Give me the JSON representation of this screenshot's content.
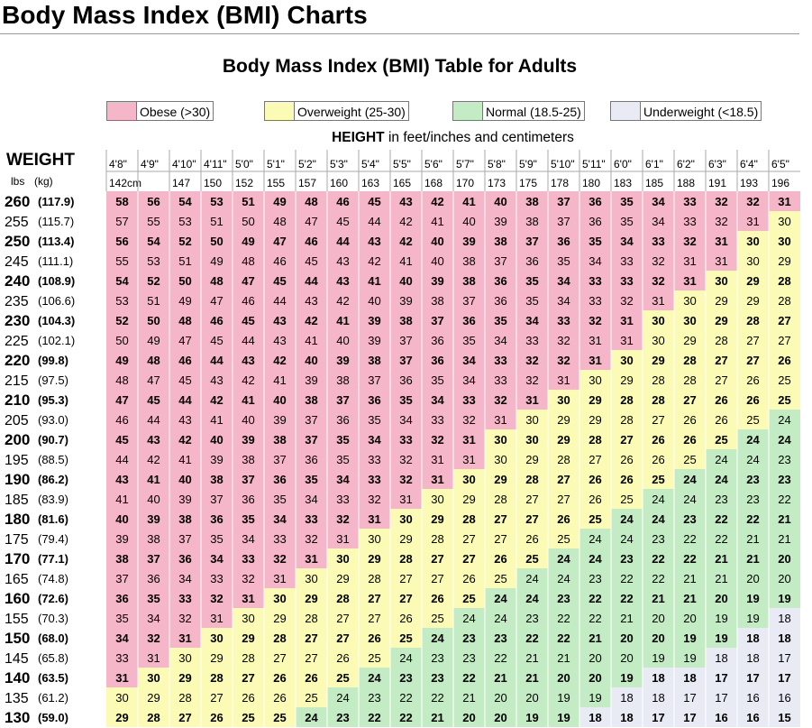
{
  "page": {
    "title": "Body Mass Index (BMI) Charts"
  },
  "table": {
    "title": "Body Mass Index (BMI) Table for Adults",
    "legend": [
      {
        "label": "Obese (>30)",
        "color": "#f4b6c8"
      },
      {
        "label": "Overweight (25-30)",
        "color": "#fbfbb6"
      },
      {
        "label": "Normal (18.5-25)",
        "color": "#c4ecc4"
      },
      {
        "label": "Underweight (<18.5)",
        "color": "#e8ebf4"
      }
    ],
    "height_caption_bold": "HEIGHT",
    "height_caption_rest": " in feet/inches and centimeters",
    "weight_label": "WEIGHT",
    "lbs_label": "lbs",
    "kg_label": "(kg)",
    "heights_ft": [
      "4'8\"",
      "4'9\"",
      "4'10\"",
      "4'11\"",
      "5'0\"",
      "5'1\"",
      "5'2\"",
      "5'3\"",
      "5'4\"",
      "5'5\"",
      "5'6\"",
      "5'7\"",
      "5'8\"",
      "5'9\"",
      "5'10\"",
      "5'11\"",
      "6'0\"",
      "6'1\"",
      "6'2\"",
      "6'3\"",
      "6'4\"",
      "6'5\""
    ],
    "heights_cm": [
      "142cm",
      "",
      "147",
      "150",
      "152",
      "155",
      "157",
      "160",
      "163",
      "165",
      "168",
      "170",
      "173",
      "175",
      "178",
      "180",
      "183",
      "185",
      "188",
      "191",
      "193",
      "196"
    ],
    "rows": [
      {
        "lbs": "260",
        "kg": "(117.9)",
        "bold": true,
        "bmi": [
          58,
          56,
          54,
          53,
          51,
          49,
          48,
          46,
          45,
          43,
          42,
          41,
          40,
          38,
          37,
          36,
          35,
          34,
          33,
          32,
          32,
          31
        ]
      },
      {
        "lbs": "255",
        "kg": "(115.7)",
        "bold": false,
        "bmi": [
          57,
          55,
          53,
          51,
          50,
          48,
          47,
          45,
          44,
          42,
          41,
          40,
          39,
          38,
          37,
          36,
          35,
          34,
          33,
          32,
          31,
          30
        ]
      },
      {
        "lbs": "250",
        "kg": "(113.4)",
        "bold": true,
        "bmi": [
          56,
          54,
          52,
          50,
          49,
          47,
          46,
          44,
          43,
          42,
          40,
          39,
          38,
          37,
          36,
          35,
          34,
          33,
          32,
          31,
          30,
          30
        ]
      },
      {
        "lbs": "245",
        "kg": "(111.1)",
        "bold": false,
        "bmi": [
          55,
          53,
          51,
          49,
          48,
          46,
          45,
          43,
          42,
          41,
          40,
          38,
          37,
          36,
          35,
          34,
          33,
          32,
          31,
          31,
          30,
          29
        ]
      },
      {
        "lbs": "240",
        "kg": "(108.9)",
        "bold": true,
        "bmi": [
          54,
          52,
          50,
          48,
          47,
          45,
          44,
          43,
          41,
          40,
          39,
          38,
          36,
          35,
          34,
          33,
          33,
          32,
          31,
          30,
          29,
          28
        ]
      },
      {
        "lbs": "235",
        "kg": "(106.6)",
        "bold": false,
        "bmi": [
          53,
          51,
          49,
          47,
          46,
          44,
          43,
          42,
          40,
          39,
          38,
          37,
          36,
          35,
          34,
          33,
          32,
          31,
          30,
          29,
          29,
          28
        ]
      },
      {
        "lbs": "230",
        "kg": "(104.3)",
        "bold": true,
        "bmi": [
          52,
          50,
          48,
          46,
          45,
          43,
          42,
          41,
          39,
          38,
          37,
          36,
          35,
          34,
          33,
          32,
          31,
          30,
          30,
          29,
          28,
          27
        ]
      },
      {
        "lbs": "225",
        "kg": "(102.1)",
        "bold": false,
        "bmi": [
          50,
          49,
          47,
          45,
          44,
          43,
          41,
          40,
          39,
          37,
          36,
          35,
          34,
          33,
          32,
          31,
          31,
          30,
          29,
          28,
          27,
          27
        ]
      },
      {
        "lbs": "220",
        "kg": "(99.8)",
        "bold": true,
        "bmi": [
          49,
          48,
          46,
          44,
          43,
          42,
          40,
          39,
          38,
          37,
          36,
          34,
          33,
          32,
          32,
          31,
          30,
          29,
          28,
          27,
          27,
          26
        ]
      },
      {
        "lbs": "215",
        "kg": "(97.5)",
        "bold": false,
        "bmi": [
          48,
          47,
          45,
          43,
          42,
          41,
          39,
          38,
          37,
          36,
          35,
          34,
          33,
          32,
          31,
          30,
          29,
          28,
          28,
          27,
          26,
          25
        ]
      },
      {
        "lbs": "210",
        "kg": "(95.3)",
        "bold": true,
        "bmi": [
          47,
          45,
          44,
          42,
          41,
          40,
          38,
          37,
          36,
          35,
          34,
          33,
          32,
          31,
          30,
          29,
          28,
          28,
          27,
          26,
          26,
          25
        ]
      },
      {
        "lbs": "205",
        "kg": "(93.0)",
        "bold": false,
        "bmi": [
          46,
          44,
          43,
          41,
          40,
          39,
          37,
          36,
          35,
          34,
          33,
          32,
          31,
          30,
          29,
          29,
          28,
          27,
          26,
          26,
          25,
          24
        ]
      },
      {
        "lbs": "200",
        "kg": "(90.7)",
        "bold": true,
        "bmi": [
          45,
          43,
          42,
          40,
          39,
          38,
          37,
          35,
          34,
          33,
          32,
          31,
          30,
          30,
          29,
          28,
          27,
          26,
          26,
          25,
          24,
          24
        ]
      },
      {
        "lbs": "195",
        "kg": "(88.5)",
        "bold": false,
        "bmi": [
          44,
          42,
          41,
          39,
          38,
          37,
          36,
          35,
          33,
          32,
          31,
          31,
          30,
          29,
          28,
          27,
          26,
          26,
          25,
          24,
          24,
          23
        ]
      },
      {
        "lbs": "190",
        "kg": "(86.2)",
        "bold": true,
        "bmi": [
          43,
          41,
          40,
          38,
          37,
          36,
          35,
          34,
          33,
          32,
          31,
          30,
          29,
          28,
          27,
          26,
          26,
          25,
          24,
          24,
          23,
          23
        ]
      },
      {
        "lbs": "185",
        "kg": "(83.9)",
        "bold": false,
        "bmi": [
          41,
          40,
          39,
          37,
          36,
          35,
          34,
          33,
          32,
          31,
          30,
          29,
          28,
          27,
          27,
          26,
          25,
          24,
          24,
          23,
          23,
          22
        ]
      },
      {
        "lbs": "180",
        "kg": "(81.6)",
        "bold": true,
        "bmi": [
          40,
          39,
          38,
          36,
          35,
          34,
          33,
          32,
          31,
          30,
          29,
          28,
          27,
          27,
          26,
          25,
          24,
          24,
          23,
          22,
          22,
          21
        ]
      },
      {
        "lbs": "175",
        "kg": "(79.4)",
        "bold": false,
        "bmi": [
          39,
          38,
          37,
          35,
          34,
          33,
          32,
          31,
          30,
          29,
          28,
          27,
          27,
          26,
          25,
          24,
          24,
          23,
          22,
          22,
          21,
          21
        ]
      },
      {
        "lbs": "170",
        "kg": "(77.1)",
        "bold": true,
        "bmi": [
          38,
          37,
          36,
          34,
          33,
          32,
          31,
          30,
          29,
          28,
          27,
          27,
          26,
          25,
          24,
          24,
          23,
          22,
          22,
          21,
          21,
          20
        ]
      },
      {
        "lbs": "165",
        "kg": "(74.8)",
        "bold": false,
        "bmi": [
          37,
          36,
          34,
          33,
          32,
          31,
          30,
          29,
          28,
          27,
          27,
          26,
          25,
          24,
          24,
          23,
          22,
          22,
          21,
          21,
          20,
          20
        ]
      },
      {
        "lbs": "160",
        "kg": "(72.6)",
        "bold": true,
        "bmi": [
          36,
          35,
          33,
          32,
          31,
          30,
          29,
          28,
          27,
          27,
          26,
          25,
          24,
          24,
          23,
          22,
          22,
          21,
          21,
          20,
          19,
          19
        ]
      },
      {
        "lbs": "155",
        "kg": "(70.3)",
        "bold": false,
        "bmi": [
          35,
          34,
          32,
          31,
          30,
          29,
          28,
          27,
          27,
          26,
          25,
          24,
          24,
          23,
          22,
          22,
          21,
          20,
          20,
          19,
          19,
          18
        ]
      },
      {
        "lbs": "150",
        "kg": "(68.0)",
        "bold": true,
        "bmi": [
          34,
          32,
          31,
          30,
          29,
          28,
          27,
          27,
          26,
          25,
          24,
          23,
          23,
          22,
          22,
          21,
          20,
          20,
          19,
          19,
          18,
          18
        ]
      },
      {
        "lbs": "145",
        "kg": "(65.8)",
        "bold": false,
        "bmi": [
          33,
          31,
          30,
          29,
          28,
          27,
          27,
          26,
          25,
          24,
          23,
          23,
          22,
          21,
          21,
          20,
          20,
          19,
          19,
          18,
          18,
          17
        ]
      },
      {
        "lbs": "140",
        "kg": "(63.5)",
        "bold": true,
        "bmi": [
          31,
          30,
          29,
          28,
          27,
          26,
          26,
          25,
          24,
          23,
          23,
          22,
          21,
          21,
          20,
          20,
          19,
          18,
          18,
          17,
          17,
          17
        ]
      },
      {
        "lbs": "135",
        "kg": "(61.2)",
        "bold": false,
        "bmi": [
          30,
          29,
          28,
          27,
          26,
          26,
          25,
          24,
          23,
          22,
          22,
          21,
          20,
          20,
          19,
          19,
          18,
          18,
          17,
          17,
          16,
          16
        ]
      },
      {
        "lbs": "130",
        "kg": "(59.0)",
        "bold": true,
        "bmi": [
          29,
          28,
          27,
          26,
          25,
          25,
          24,
          23,
          22,
          22,
          21,
          20,
          20,
          19,
          19,
          18,
          18,
          17,
          17,
          16,
          16,
          15
        ]
      }
    ]
  }
}
